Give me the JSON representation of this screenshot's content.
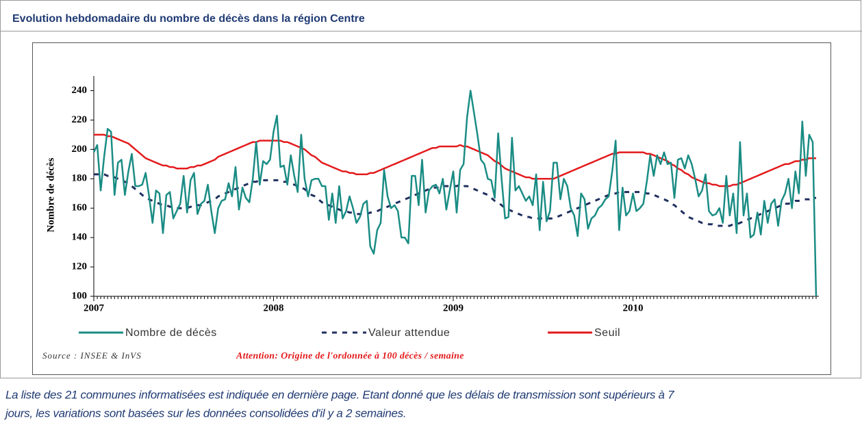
{
  "header": {
    "title": "Evolution hebdomadaire du nombre de décès dans la région Centre"
  },
  "footer": {
    "lines": [
      "La liste des 21 communes informatisées est indiquée en dernière page. Etant donné que les délais de transmission sont supérieurs à 7",
      "jours, les variations sont basées sur les données consolidées d'il y a 2 semaines."
    ]
  },
  "chart_data": {
    "type": "line",
    "ylabel": "Nombre de décès",
    "source": "Source : INSEE & InVS",
    "annotation": "Attention: Origine de l'ordonnée à 100 décès / semaine",
    "ylim": [
      100,
      250
    ],
    "yticks": [
      100,
      120,
      140,
      160,
      180,
      200,
      220,
      240
    ],
    "categories": [
      "2007",
      null,
      null,
      null,
      null,
      null,
      null,
      null,
      null,
      null,
      null,
      null,
      null,
      null,
      null,
      null,
      null,
      null,
      null,
      null,
      null,
      null,
      null,
      null,
      null,
      null,
      null,
      null,
      null,
      null,
      null,
      null,
      null,
      null,
      null,
      null,
      null,
      null,
      null,
      null,
      null,
      null,
      null,
      null,
      null,
      null,
      null,
      null,
      null,
      null,
      null,
      null,
      "2008",
      null,
      null,
      null,
      null,
      null,
      null,
      null,
      null,
      null,
      null,
      null,
      null,
      null,
      null,
      null,
      null,
      null,
      null,
      null,
      null,
      null,
      null,
      null,
      null,
      null,
      null,
      null,
      null,
      null,
      null,
      null,
      null,
      null,
      null,
      null,
      null,
      null,
      null,
      null,
      null,
      null,
      null,
      null,
      null,
      null,
      null,
      null,
      null,
      null,
      null,
      null,
      "2009",
      null,
      null,
      null,
      null,
      null,
      null,
      null,
      null,
      null,
      null,
      null,
      null,
      null,
      null,
      null,
      null,
      null,
      null,
      null,
      null,
      null,
      null,
      null,
      null,
      null,
      null,
      null,
      null,
      null,
      null,
      null,
      null,
      null,
      null,
      null,
      null,
      null,
      null,
      null,
      null,
      null,
      null,
      null,
      null,
      null,
      null,
      null,
      null,
      null,
      null,
      null,
      "2010",
      null,
      null,
      null,
      null,
      null,
      null,
      null,
      null,
      null,
      null,
      null,
      null,
      null,
      null,
      null,
      null,
      null,
      null,
      null,
      null,
      null,
      null,
      null,
      null,
      null,
      null,
      null,
      null,
      null,
      null,
      null,
      null,
      null,
      null,
      null,
      null,
      null,
      null,
      null,
      null,
      null,
      null,
      null,
      null,
      null,
      null,
      null,
      null,
      null,
      null,
      null,
      null,
      null
    ],
    "series": [
      {
        "name": "Nombre de décès",
        "color": "#1a8c84",
        "style": "solid",
        "values": [
          198,
          203,
          172,
          195,
          214,
          212,
          169,
          191,
          193,
          169,
          185,
          197,
          175,
          175,
          176,
          184,
          168,
          150,
          172,
          170,
          143,
          169,
          171,
          153,
          158,
          163,
          182,
          157,
          179,
          184,
          156,
          163,
          165,
          176,
          158,
          143,
          160,
          165,
          166,
          177,
          168,
          188,
          159,
          174,
          167,
          164,
          180,
          205,
          176,
          192,
          190,
          193,
          212,
          223,
          188,
          189,
          176,
          196,
          182,
          171,
          210,
          180,
          168,
          179,
          180,
          180,
          175,
          175,
          152,
          170,
          150,
          175,
          153,
          158,
          168,
          160,
          150,
          154,
          163,
          165,
          134,
          129,
          145,
          150,
          186,
          168,
          160,
          162,
          158,
          140,
          140,
          136,
          182,
          182,
          162,
          193,
          157,
          172,
          175,
          176,
          170,
          180,
          159,
          172,
          185,
          157,
          186,
          190,
          222,
          240,
          225,
          210,
          193,
          190,
          180,
          179,
          167,
          211,
          180,
          153,
          154,
          208,
          172,
          175,
          170,
          165,
          168,
          162,
          183,
          145,
          178,
          151,
          158,
          191,
          191,
          166,
          180,
          175,
          160,
          155,
          141,
          170,
          166,
          146,
          153,
          155,
          160,
          162,
          166,
          168,
          185,
          206,
          145,
          174,
          155,
          158,
          170,
          158,
          160,
          163,
          178,
          196,
          182,
          196,
          190,
          198,
          190,
          191,
          167,
          193,
          194,
          187,
          196,
          190,
          180,
          168,
          172,
          183,
          158,
          155,
          156,
          160,
          150,
          182,
          155,
          170,
          143,
          205,
          155,
          170,
          140,
          142,
          157,
          142,
          165,
          150,
          163,
          166,
          148,
          165,
          170,
          180,
          160,
          185,
          170,
          219,
          182,
          210,
          205,
          100
        ]
      },
      {
        "name": "Valeur attendue",
        "color": "#1f2f5e",
        "style": "dashed",
        "values": [
          183,
          183,
          183,
          183,
          182,
          182,
          181,
          180,
          179,
          178,
          177,
          175,
          173,
          171,
          169,
          167,
          166,
          165,
          164,
          163,
          162,
          162,
          161,
          161,
          160,
          160,
          160,
          160,
          161,
          161,
          162,
          162,
          163,
          164,
          165,
          166,
          168,
          169,
          170,
          171,
          172,
          173,
          174,
          175,
          176,
          177,
          178,
          178,
          179,
          179,
          179,
          179,
          179,
          179,
          179,
          178,
          178,
          177,
          176,
          175,
          174,
          173,
          171,
          169,
          168,
          166,
          164,
          163,
          162,
          161,
          160,
          159,
          158,
          158,
          157,
          157,
          156,
          156,
          156,
          156,
          157,
          157,
          158,
          159,
          160,
          161,
          162,
          163,
          164,
          165,
          166,
          167,
          168,
          169,
          170,
          171,
          172,
          173,
          174,
          174,
          174,
          175,
          175,
          175,
          175,
          175,
          176,
          175,
          175,
          174,
          173,
          172,
          171,
          170,
          169,
          167,
          165,
          164,
          162,
          160,
          159,
          158,
          157,
          156,
          155,
          154,
          154,
          153,
          153,
          153,
          153,
          153,
          153,
          153,
          154,
          155,
          156,
          157,
          158,
          159,
          160,
          161,
          162,
          163,
          164,
          165,
          166,
          167,
          168,
          169,
          170,
          170,
          171,
          171,
          171,
          171,
          171,
          171,
          171,
          171,
          170,
          170,
          169,
          168,
          167,
          166,
          165,
          163,
          162,
          160,
          158,
          156,
          154,
          153,
          152,
          151,
          150,
          150,
          149,
          149,
          148,
          148,
          148,
          148,
          148,
          149,
          149,
          150,
          151,
          152,
          153,
          154,
          155,
          156,
          157,
          158,
          159,
          160,
          161,
          162,
          163,
          163,
          164,
          165,
          165,
          166,
          166,
          166,
          167,
          167
        ]
      },
      {
        "name": "Seuil",
        "color": "#e31a1c",
        "style": "solid",
        "values": [
          210,
          210,
          210,
          210,
          209,
          209,
          208,
          207,
          206,
          205,
          204,
          202,
          200,
          198,
          196,
          194,
          193,
          192,
          191,
          190,
          189,
          189,
          188,
          188,
          187,
          187,
          187,
          187,
          188,
          188,
          189,
          189,
          190,
          191,
          192,
          193,
          195,
          196,
          197,
          198,
          199,
          200,
          201,
          202,
          203,
          204,
          205,
          205,
          206,
          206,
          206,
          206,
          206,
          206,
          206,
          205,
          205,
          204,
          203,
          202,
          201,
          200,
          198,
          196,
          195,
          193,
          191,
          190,
          189,
          188,
          187,
          186,
          185,
          185,
          184,
          184,
          183,
          183,
          183,
          183,
          184,
          184,
          185,
          186,
          187,
          188,
          189,
          190,
          191,
          192,
          193,
          194,
          195,
          196,
          197,
          198,
          199,
          200,
          201,
          201,
          202,
          202,
          202,
          202,
          202,
          202,
          203,
          202,
          202,
          201,
          200,
          199,
          198,
          197,
          196,
          194,
          192,
          191,
          189,
          187,
          186,
          185,
          184,
          183,
          182,
          181,
          181,
          180,
          180,
          180,
          180,
          180,
          180,
          180,
          181,
          182,
          183,
          184,
          185,
          186,
          187,
          188,
          189,
          190,
          191,
          192,
          193,
          194,
          195,
          196,
          197,
          197,
          198,
          198,
          198,
          198,
          198,
          198,
          198,
          198,
          197,
          197,
          196,
          195,
          194,
          193,
          192,
          190,
          189,
          187,
          186,
          184,
          183,
          181,
          180,
          179,
          178,
          177,
          177,
          176,
          176,
          175,
          175,
          175,
          175,
          176,
          176,
          177,
          178,
          179,
          180,
          181,
          182,
          183,
          184,
          185,
          186,
          187,
          188,
          189,
          190,
          190,
          191,
          192,
          192,
          193,
          193,
          194,
          194,
          194
        ]
      }
    ]
  }
}
